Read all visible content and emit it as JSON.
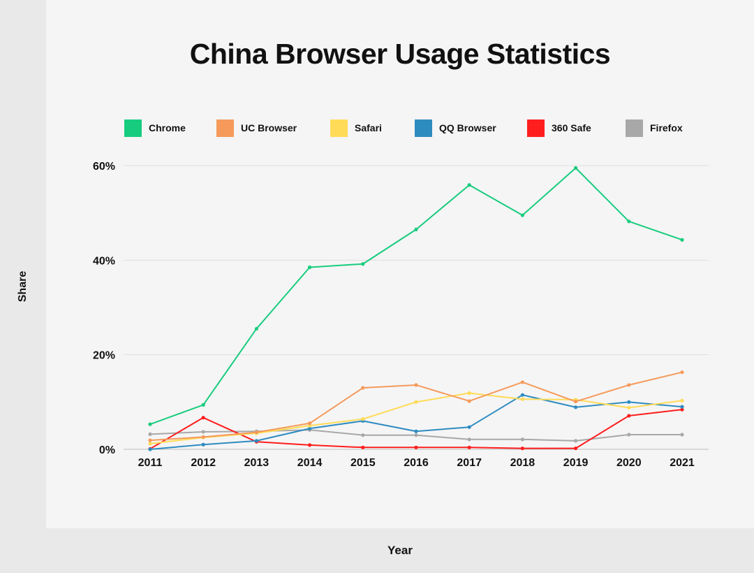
{
  "chart_data": {
    "type": "line",
    "title": "China Browser Usage Statistics",
    "xlabel": "Year",
    "ylabel": "Share",
    "ylim": [
      0,
      60
    ],
    "yticks": [
      0,
      20,
      40,
      60
    ],
    "ytick_labels": [
      "0%",
      "20%",
      "40%",
      "60%"
    ],
    "grid": true,
    "legend_position": "top",
    "categories": [
      "2011",
      "2012",
      "2013",
      "2014",
      "2015",
      "2016",
      "2017",
      "2018",
      "2019",
      "2020",
      "2021"
    ],
    "series": [
      {
        "name": "Chrome",
        "color": "#17cc7e",
        "values": [
          5.3,
          9.4,
          25.5,
          38.5,
          39.2,
          46.5,
          55.9,
          49.5,
          59.5,
          48.2,
          44.3
        ]
      },
      {
        "name": "UC Browser",
        "color": "#f59a5b",
        "values": [
          1.9,
          2.6,
          3.6,
          5.5,
          13.0,
          13.6,
          10.2,
          14.2,
          10.1,
          13.6,
          16.3
        ]
      },
      {
        "name": "Safari",
        "color": "#ffdb57",
        "values": [
          1.2,
          2.5,
          3.4,
          5.0,
          6.4,
          10.0,
          11.9,
          10.6,
          10.5,
          8.8,
          10.3
        ]
      },
      {
        "name": "QQ Browser",
        "color": "#2e8bc0",
        "values": [
          0.0,
          1.0,
          1.8,
          4.4,
          6.0,
          3.8,
          4.7,
          11.5,
          8.9,
          10.0,
          9.0
        ]
      },
      {
        "name": "360 Safe",
        "color": "#ff1e1e",
        "values": [
          0.1,
          6.7,
          1.6,
          0.9,
          0.4,
          0.4,
          0.4,
          0.2,
          0.2,
          7.1,
          8.4
        ]
      },
      {
        "name": "Firefox",
        "color": "#a8a8a8",
        "values": [
          3.2,
          3.7,
          3.8,
          4.1,
          3.0,
          3.0,
          2.1,
          2.1,
          1.8,
          3.1,
          3.1
        ]
      }
    ]
  }
}
